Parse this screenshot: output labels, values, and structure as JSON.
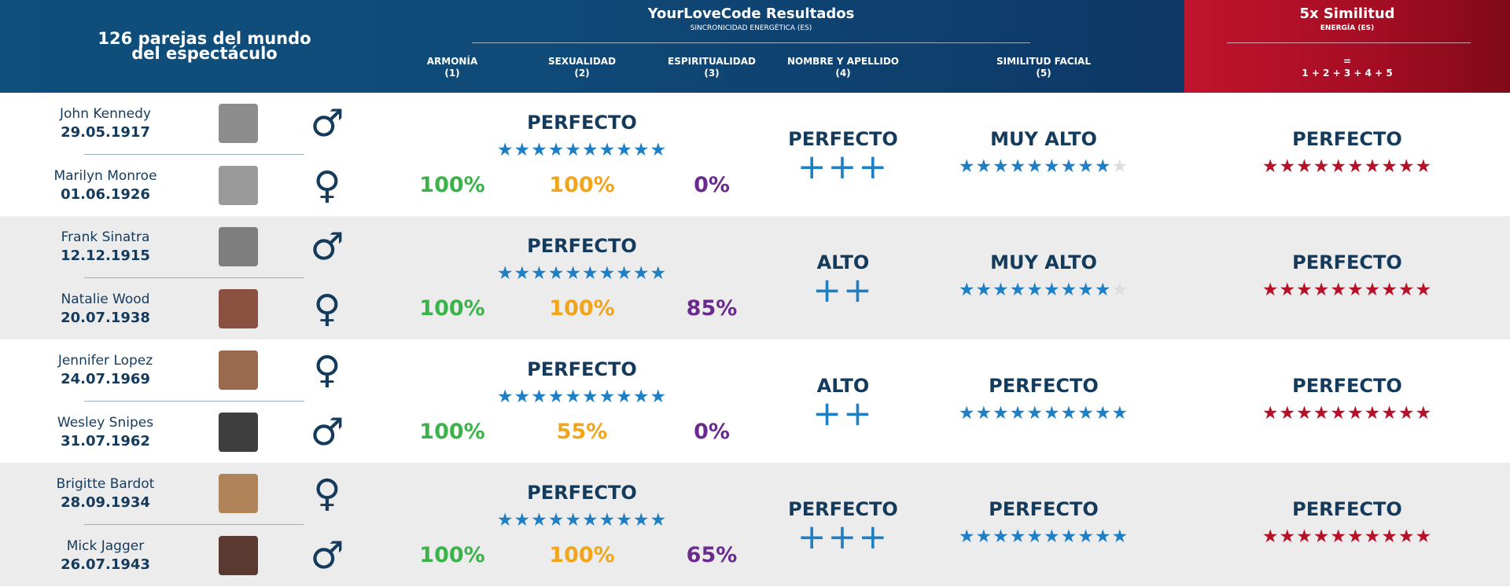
{
  "header": {
    "left_title_line1": "126 parejas del mundo",
    "left_title_line2": "del espectáculo",
    "title": "YourLoveCode Resultados",
    "subtitle": "SINCRONICIDAD ENERGÉTICA (ES)",
    "columns": [
      {
        "label": "ARMONÍA",
        "num": "(1)"
      },
      {
        "label": "SEXUALIDAD",
        "num": "(2)"
      },
      {
        "label": "ESPIRITUALIDAD",
        "num": "(3)"
      },
      {
        "label": "NOMBRE Y APELLIDO",
        "num": "(4)"
      },
      {
        "label": "SIMILITUD FACIAL",
        "num": "(5)"
      }
    ],
    "right_title": "5x Similitud",
    "right_subtitle": "ENERGÍA (ES)",
    "right_eq1": "=",
    "right_eq2": "1 + 2 + 3 + 4 + 5"
  },
  "colors": {
    "green": "#3bb34a",
    "orange": "#f0a51b",
    "purple": "#6a2a8e",
    "blue_star": "#1f7fc4",
    "red_star": "#b5122a",
    "gray_star": "#dddddd",
    "text_dark": "#143a5c"
  },
  "pairs": [
    {
      "p1": {
        "name": "John Kennedy",
        "date": "29.05.1917",
        "gender_symbol": "♂",
        "photo_color": "#8d8d8d"
      },
      "p2": {
        "name": "Marilyn Monroe",
        "date": "01.06.1926",
        "gender_symbol": "♀",
        "photo_color": "#9a9a9a"
      },
      "overall_label": "PERFECTO",
      "overall_stars": 10,
      "armonia": "100%",
      "sexualidad": "100%",
      "espiritualidad": "0%",
      "nombre_label": "PERFECTO",
      "nombre_plus": "+++",
      "facial_label": "MUY ALTO",
      "facial_stars": 9,
      "similitud_label": "PERFECTO",
      "similitud_stars": 10
    },
    {
      "p1": {
        "name": "Frank Sinatra",
        "date": "12.12.1915",
        "gender_symbol": "♂",
        "photo_color": "#7e7e7e"
      },
      "p2": {
        "name": "Natalie Wood",
        "date": "20.07.1938",
        "gender_symbol": "♀",
        "photo_color": "#8a5040"
      },
      "overall_label": "PERFECTO",
      "overall_stars": 10,
      "armonia": "100%",
      "sexualidad": "100%",
      "espiritualidad": "85%",
      "nombre_label": "ALTO",
      "nombre_plus": "++",
      "facial_label": "MUY ALTO",
      "facial_stars": 9,
      "similitud_label": "PERFECTO",
      "similitud_stars": 10
    },
    {
      "p1": {
        "name": "Jennifer Lopez",
        "date": "24.07.1969",
        "gender_symbol": "♀",
        "photo_color": "#9a6a4e"
      },
      "p2": {
        "name": "Wesley Snipes",
        "date": "31.07.1962",
        "gender_symbol": "♂",
        "photo_color": "#3e3e3e"
      },
      "overall_label": "PERFECTO",
      "overall_stars": 10,
      "armonia": "100%",
      "sexualidad": "55%",
      "espiritualidad": "0%",
      "nombre_label": "ALTO",
      "nombre_plus": "++",
      "facial_label": "PERFECTO",
      "facial_stars": 10,
      "similitud_label": "PERFECTO",
      "similitud_stars": 10
    },
    {
      "p1": {
        "name": "Brigitte Bardot",
        "date": "28.09.1934",
        "gender_symbol": "♀",
        "photo_color": "#b08358"
      },
      "p2": {
        "name": "Mick Jagger",
        "date": "26.07.1943",
        "gender_symbol": "♂",
        "photo_color": "#5a3a30"
      },
      "overall_label": "PERFECTO",
      "overall_stars": 10,
      "armonia": "100%",
      "sexualidad": "100%",
      "espiritualidad": "65%",
      "nombre_label": "PERFECTO",
      "nombre_plus": "+++",
      "facial_label": "PERFECTO",
      "facial_stars": 10,
      "similitud_label": "PERFECTO",
      "similitud_stars": 10
    }
  ]
}
